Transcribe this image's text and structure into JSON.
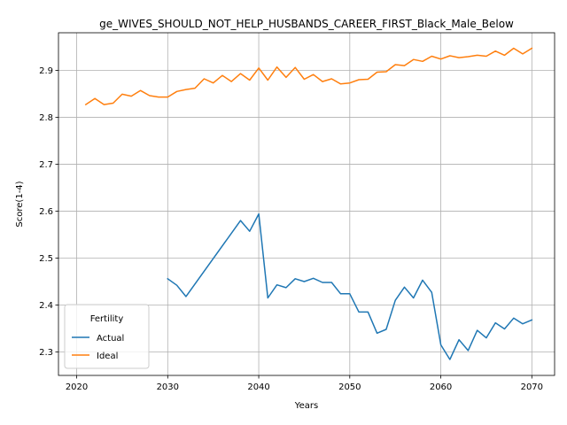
{
  "chart_data": {
    "type": "line",
    "title": "ge_WIVES_SHOULD_NOT_HELP_HUSBANDS_CAREER_FIRST_Black_Male_Below",
    "xlabel": "Years",
    "ylabel": "Score(1-4)",
    "xlim": [
      2018,
      2072.5
    ],
    "ylim": [
      2.25,
      2.98
    ],
    "xticks": [
      2020,
      2030,
      2040,
      2050,
      2060,
      2070
    ],
    "xtick_labels": [
      "2020",
      "2030",
      "2040",
      "2050",
      "2060",
      "2070"
    ],
    "yticks": [
      2.3,
      2.4,
      2.5,
      2.6,
      2.7,
      2.8,
      2.9
    ],
    "ytick_labels": [
      "2.3",
      "2.4",
      "2.5",
      "2.6",
      "2.7",
      "2.8",
      "2.9"
    ],
    "grid": true,
    "legend": {
      "title": "Fertility",
      "placement": "lower-left"
    },
    "series": [
      {
        "name": "Actual",
        "color": "#1f77b4",
        "x": [
          2030,
          2031,
          2032,
          2038,
          2039,
          2040,
          2041,
          2042,
          2043,
          2044,
          2045,
          2046,
          2047,
          2048,
          2049,
          2050,
          2051,
          2052,
          2053,
          2054,
          2055,
          2056,
          2057,
          2058,
          2059,
          2060,
          2061,
          2062,
          2063,
          2064,
          2065,
          2066,
          2067,
          2068,
          2069,
          2070
        ],
        "values": [
          2.456,
          2.442,
          2.418,
          2.58,
          2.557,
          2.594,
          2.415,
          2.443,
          2.437,
          2.456,
          2.45,
          2.457,
          2.448,
          2.448,
          2.424,
          2.424,
          2.385,
          2.385,
          2.34,
          2.348,
          2.41,
          2.438,
          2.415,
          2.453,
          2.427,
          2.315,
          2.284,
          2.326,
          2.303,
          2.346,
          2.33,
          2.362,
          2.349,
          2.372,
          2.36,
          2.368
        ]
      },
      {
        "name": "Ideal",
        "color": "#ff7f0e",
        "x": [
          2021,
          2022,
          2023,
          2024,
          2025,
          2026,
          2027,
          2028,
          2029,
          2030,
          2031,
          2032,
          2033,
          2034,
          2035,
          2036,
          2037,
          2038,
          2039,
          2040,
          2041,
          2042,
          2043,
          2044,
          2045,
          2046,
          2047,
          2048,
          2049,
          2050,
          2051,
          2052,
          2053,
          2054,
          2055,
          2056,
          2057,
          2058,
          2059,
          2060,
          2061,
          2062,
          2063,
          2064,
          2065,
          2066,
          2067,
          2068,
          2069,
          2070
        ],
        "values": [
          2.827,
          2.84,
          2.827,
          2.83,
          2.849,
          2.845,
          2.857,
          2.846,
          2.843,
          2.843,
          2.855,
          2.859,
          2.862,
          2.882,
          2.873,
          2.889,
          2.876,
          2.893,
          2.879,
          2.905,
          2.879,
          2.907,
          2.885,
          2.906,
          2.881,
          2.891,
          2.876,
          2.882,
          2.871,
          2.873,
          2.88,
          2.881,
          2.896,
          2.897,
          2.912,
          2.91,
          2.923,
          2.919,
          2.93,
          2.924,
          2.931,
          2.927,
          2.929,
          2.932,
          2.93,
          2.941,
          2.932,
          2.947,
          2.935,
          2.947
        ]
      }
    ]
  }
}
